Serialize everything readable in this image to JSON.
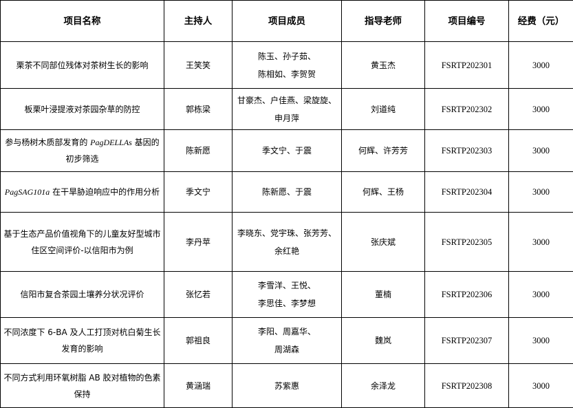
{
  "table": {
    "headers": [
      "项目名称",
      "主持人",
      "项目成员",
      "指导老师",
      "项目编号",
      "经费（元）"
    ],
    "rows": [
      {
        "name": {
          "pre": "栗茶不同部位残体对茶树生长的影响",
          "italic": "",
          "post": ""
        },
        "host": "王笑笑",
        "members": "陈玉、孙子茹、\n陈相如、李贺贺",
        "advisor": "黄玉杰",
        "code": "FSRTP202301",
        "fund": "3000"
      },
      {
        "name": {
          "pre": "板栗叶浸提液对茶园杂草的防控",
          "italic": "",
          "post": ""
        },
        "host": "郭栋梁",
        "members": "甘豪杰、户佳燕、梁旋旋、\n申月萍",
        "advisor": "刘道纯",
        "code": "FSRTP202302",
        "fund": "3000"
      },
      {
        "name": {
          "pre": "参与杨树木质部发育的 ",
          "italic": "PagDELLAs",
          "post": " 基因的初步筛选"
        },
        "host": "陈新愿",
        "members": "季文宁、于震",
        "advisor": "何辉、许芳芳",
        "code": "FSRTP202303",
        "fund": "3000"
      },
      {
        "name": {
          "pre": "",
          "italic": "PagSAG101a",
          "post": " 在干旱胁迫响应中的作用分析"
        },
        "host": "季文宁",
        "members": "陈新愿、于震",
        "advisor": "何辉、王杨",
        "code": "FSRTP202304",
        "fund": "3000"
      },
      {
        "name": {
          "pre": "基于生态产品价值视角下的儿童友好型城市住区空间评价-以信阳市为例",
          "italic": "",
          "post": ""
        },
        "host": "李丹苹",
        "members": "李晓东、党宇珠、张芳芳、\n余红艳",
        "advisor": "张庆斌",
        "code": "FSRTP202305",
        "fund": "3000"
      },
      {
        "name": {
          "pre": "信阳市复合茶园土壤养分状况评价",
          "italic": "",
          "post": ""
        },
        "host": "张忆若",
        "members": "李雪洋、王悦、\n李思佳、李梦想",
        "advisor": "董楠",
        "code": "FSRTP202306",
        "fund": "3000"
      },
      {
        "name": {
          "pre": "不同浓度下 6-BA 及人工打顶对杭白菊生长发育的影响",
          "italic": "",
          "post": ""
        },
        "host": "郭祖良",
        "members": "李阳、周嘉华、\n周湖森",
        "advisor": "魏岚",
        "code": "FSRTP202307",
        "fund": "3000"
      },
      {
        "name": {
          "pre": "不同方式利用环氧树脂 AB 胶对植物的色素保持",
          "italic": "",
          "post": ""
        },
        "host": "黄涵瑞",
        "members": "苏紫惠",
        "advisor": "余泽龙",
        "code": "FSRTP202308",
        "fund": "3000"
      }
    ]
  }
}
